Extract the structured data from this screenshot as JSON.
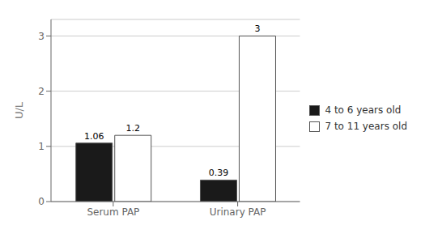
{
  "chart_data": {
    "type": "bar",
    "categories": [
      "Serum PAP",
      "Urinary PAP"
    ],
    "series": [
      {
        "name": "4 to 6 years old",
        "color": "#1a1a1a",
        "values": [
          1.06,
          0.39
        ]
      },
      {
        "name": "7 to 11 years old",
        "color": "#ffffff",
        "values": [
          1.2,
          3
        ]
      }
    ],
    "ylabel": "U/L",
    "ylim": [
      0,
      3.3
    ],
    "yticks": [
      0,
      1,
      2,
      3
    ],
    "grid": true,
    "legend": "right",
    "data_labels": true
  }
}
